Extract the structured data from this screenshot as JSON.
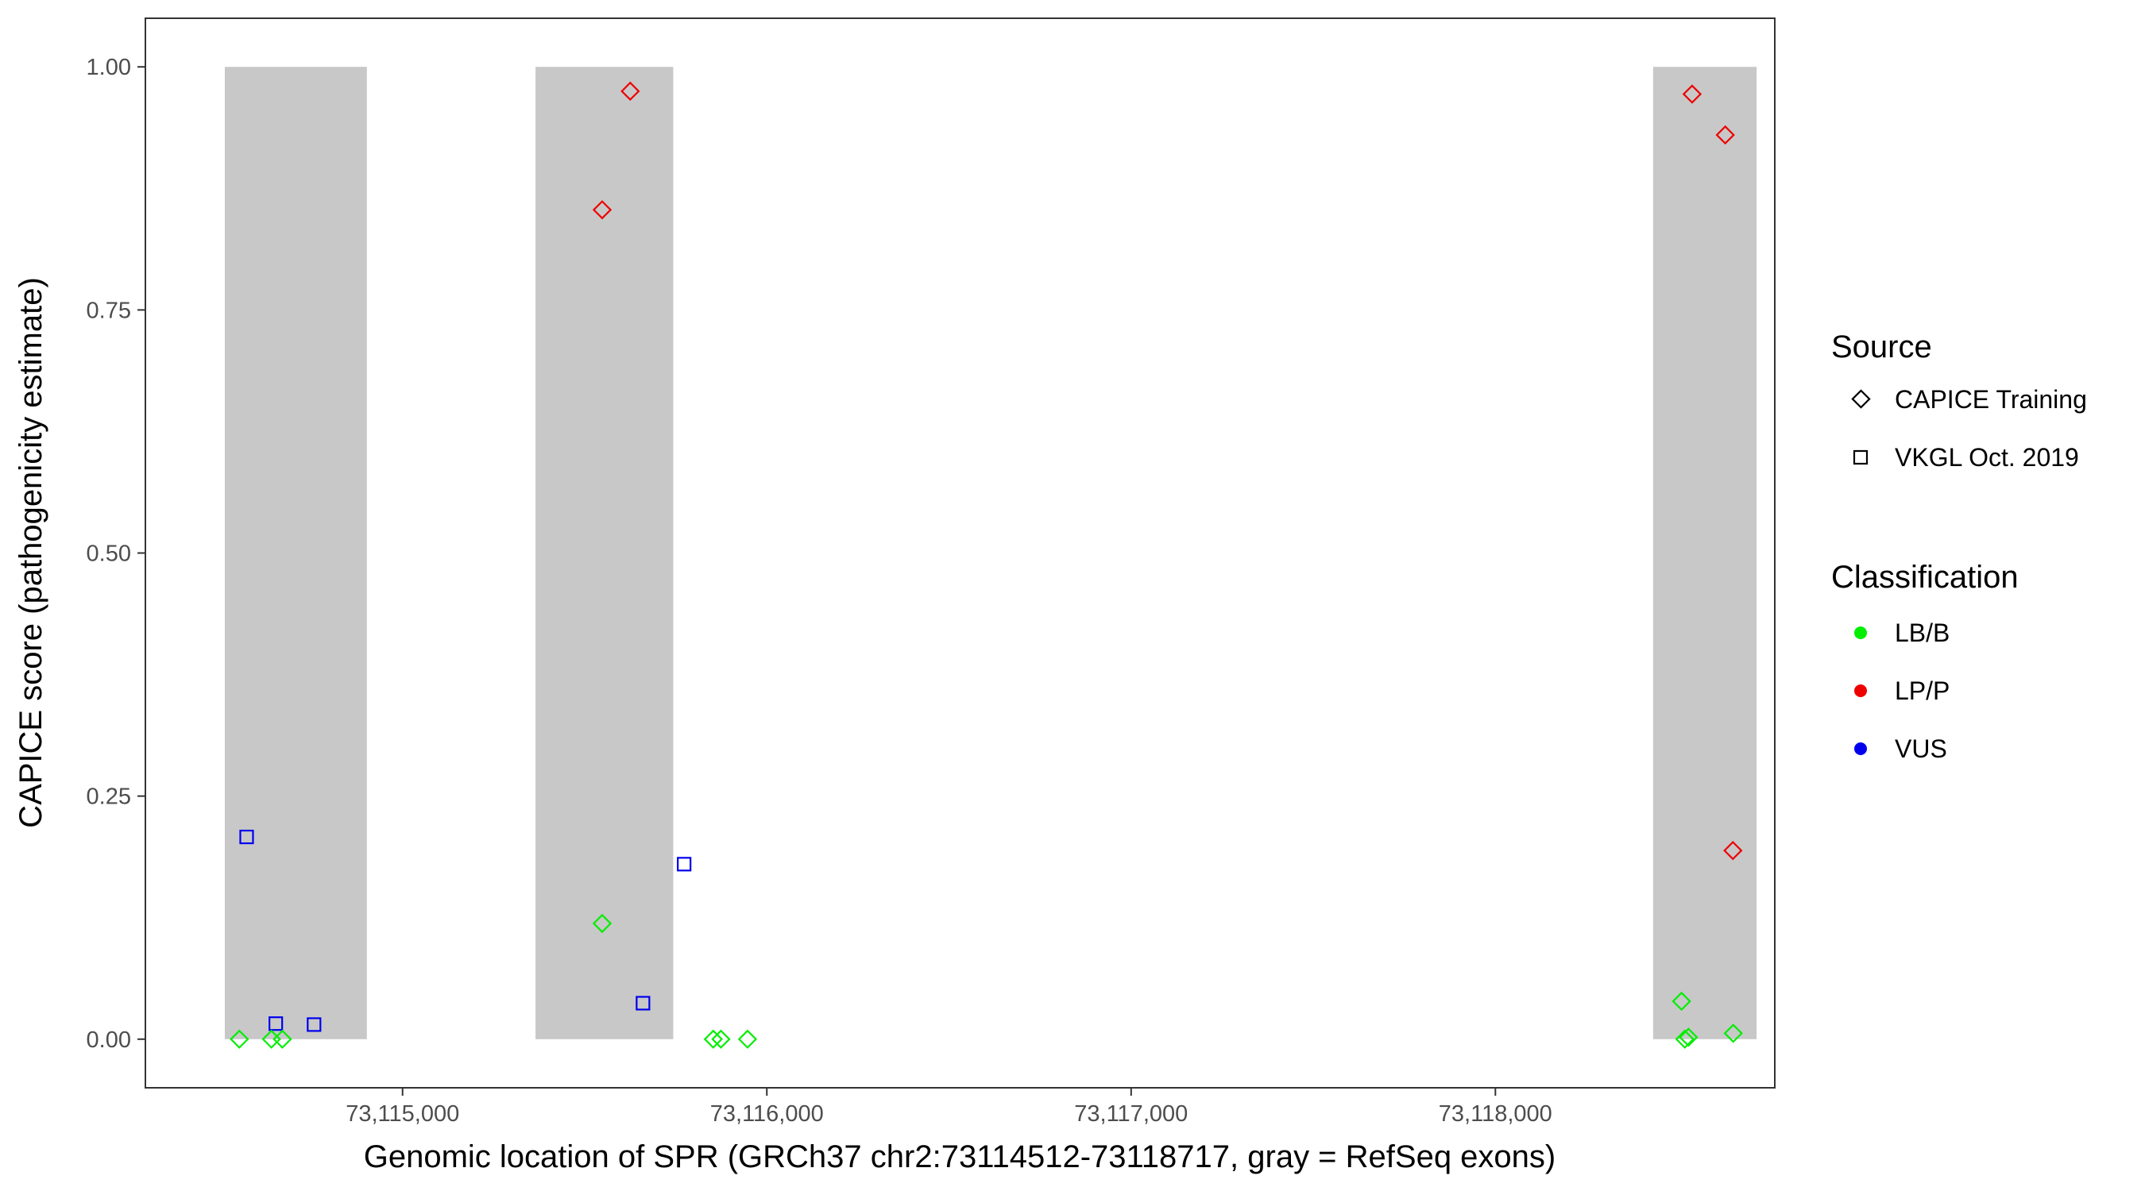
{
  "chart_data": {
    "type": "scatter",
    "xlabel": "Genomic location of SPR (GRCh37 chr2:73114512-73118717, gray = RefSeq exons)",
    "ylabel": "CAPICE score (pathogenicity estimate)",
    "xlim": [
      73114294,
      73118767
    ],
    "ylim": [
      -0.05,
      1.05
    ],
    "x_ticks": [
      73115000,
      73116000,
      73117000,
      73118000
    ],
    "x_tick_labels": [
      "73,115,000",
      "73,116,000",
      "73,117,000",
      "73,118,000"
    ],
    "y_ticks": [
      0,
      0.25,
      0.5,
      0.75,
      1.0
    ],
    "y_tick_labels": [
      "0.00",
      "0.25",
      "0.50",
      "0.75",
      "1.00"
    ],
    "grid": false,
    "exons": [
      [
        73114512,
        73114902
      ],
      [
        73115365,
        73115743
      ],
      [
        73118433,
        73118717
      ]
    ],
    "exon_color": "#c8c8c8",
    "legend": {
      "placement": "right",
      "source": {
        "title": "Source",
        "items": [
          {
            "label": "CAPICE Training",
            "shape": "diamond"
          },
          {
            "label": "VKGL Oct. 2019",
            "shape": "square"
          }
        ]
      },
      "classification": {
        "title": "Classification",
        "items": [
          {
            "label": "LB/B",
            "color": "#00ee00"
          },
          {
            "label": "LP/P",
            "color": "#ee0000"
          },
          {
            "label": "VUS",
            "color": "#0000ee"
          }
        ]
      }
    },
    "points": [
      {
        "x": 73114572,
        "y": 0.208,
        "source": "VKGL Oct. 2019",
        "class": "VUS"
      },
      {
        "x": 73114652,
        "y": 0.016,
        "source": "VKGL Oct. 2019",
        "class": "VUS"
      },
      {
        "x": 73114757,
        "y": 0.015,
        "source": "VKGL Oct. 2019",
        "class": "VUS"
      },
      {
        "x": 73115660,
        "y": 0.037,
        "source": "VKGL Oct. 2019",
        "class": "VUS"
      },
      {
        "x": 73115773,
        "y": 0.18,
        "source": "VKGL Oct. 2019",
        "class": "VUS"
      },
      {
        "x": 73114552,
        "y": 0.0,
        "source": "CAPICE Training",
        "class": "LB/B"
      },
      {
        "x": 73114640,
        "y": 0.0,
        "source": "CAPICE Training",
        "class": "LB/B"
      },
      {
        "x": 73114670,
        "y": 0.0,
        "source": "CAPICE Training",
        "class": "LB/B"
      },
      {
        "x": 73115548,
        "y": 0.119,
        "source": "CAPICE Training",
        "class": "LB/B"
      },
      {
        "x": 73115853,
        "y": 0.0,
        "source": "CAPICE Training",
        "class": "LB/B"
      },
      {
        "x": 73115874,
        "y": 0.0,
        "source": "CAPICE Training",
        "class": "LB/B"
      },
      {
        "x": 73115947,
        "y": 0.0,
        "source": "CAPICE Training",
        "class": "LB/B"
      },
      {
        "x": 73118511,
        "y": 0.039,
        "source": "CAPICE Training",
        "class": "LB/B"
      },
      {
        "x": 73118520,
        "y": 0.0,
        "source": "CAPICE Training",
        "class": "LB/B"
      },
      {
        "x": 73118530,
        "y": 0.002,
        "source": "CAPICE Training",
        "class": "LB/B"
      },
      {
        "x": 73118653,
        "y": 0.006,
        "source": "CAPICE Training",
        "class": "LB/B"
      },
      {
        "x": 73115548,
        "y": 0.853,
        "source": "CAPICE Training",
        "class": "LP/P"
      },
      {
        "x": 73115625,
        "y": 0.975,
        "source": "CAPICE Training",
        "class": "LP/P"
      },
      {
        "x": 73118540,
        "y": 0.972,
        "source": "CAPICE Training",
        "class": "LP/P"
      },
      {
        "x": 73118631,
        "y": 0.93,
        "source": "CAPICE Training",
        "class": "LP/P"
      },
      {
        "x": 73118652,
        "y": 0.194,
        "source": "CAPICE Training",
        "class": "LP/P"
      }
    ]
  }
}
